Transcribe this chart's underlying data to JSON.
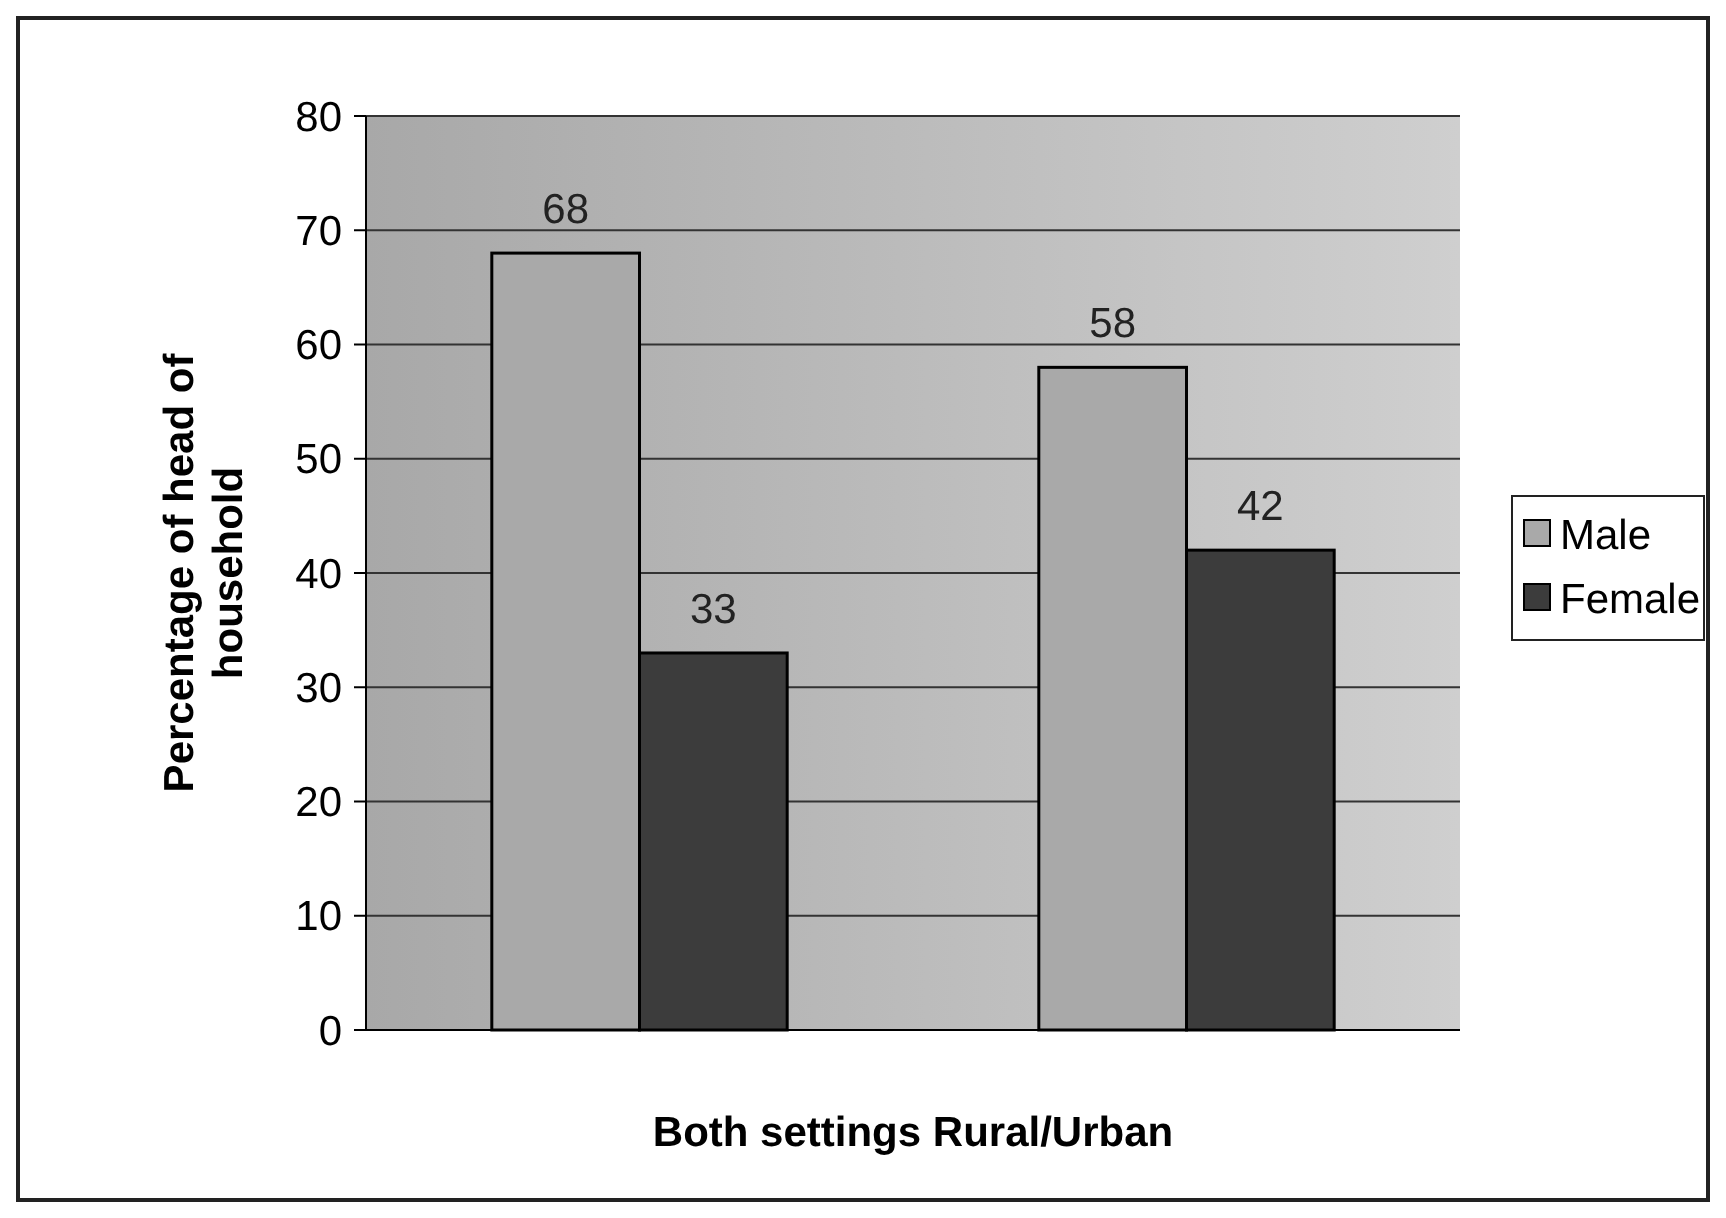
{
  "chart_data": {
    "type": "bar",
    "categories": [
      null,
      null
    ],
    "series": [
      {
        "name": "Male",
        "color": "#a9a9a9",
        "values": [
          68,
          58
        ]
      },
      {
        "name": "Female",
        "color": "#3c3c3c",
        "values": [
          33,
          42
        ]
      }
    ],
    "xlabel": "Both settings Rural/Urban",
    "ylabel": "Percentage of head of household",
    "ylim": [
      0,
      80
    ],
    "yticks": [
      0,
      10,
      20,
      30,
      40,
      50,
      60,
      70,
      80
    ],
    "grid": "y",
    "legend": "right",
    "data_labels": true
  }
}
